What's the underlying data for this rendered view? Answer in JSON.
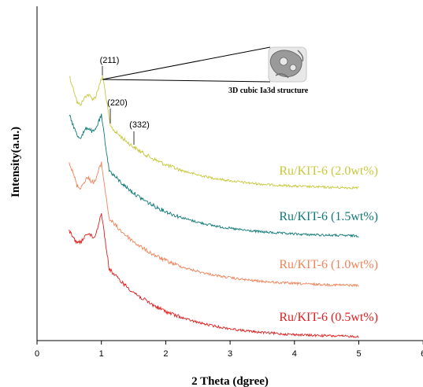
{
  "chart_data": {
    "type": "line",
    "title": "",
    "xlabel": "2 Theta (dgree)",
    "ylabel": "Intensity(a.u.)",
    "xlim": [
      0,
      6
    ],
    "x_ticks": [
      "0",
      "1",
      "2",
      "3",
      "4",
      "5",
      "6"
    ],
    "grid": false,
    "legend": "labels next to curves (right)",
    "series": [
      {
        "name": "Ru/KIT-6 (2.0wt%)",
        "color": "#c8c83c",
        "peak_x": 1.02,
        "x_start": 0.5,
        "x_end": 5.0
      },
      {
        "name": "Ru/KIT-6 (1.5wt%)",
        "color": "#0f7a78",
        "peak_x": 1.0,
        "x_start": 0.5,
        "x_end": 5.0
      },
      {
        "name": "Ru/KIT-6 (1.0wt%)",
        "color": "#f0845a",
        "peak_x": 1.0,
        "x_start": 0.5,
        "x_end": 5.0
      },
      {
        "name": "Ru/KIT-6 (0.5wt%)",
        "color": "#e01e1e",
        "peak_x": 1.0,
        "x_start": 0.5,
        "x_end": 5.0
      }
    ],
    "annotations": [
      {
        "text": "(211)",
        "x": 1.02
      },
      {
        "text": "(220)",
        "x": 1.15
      },
      {
        "text": "(332)",
        "x": 1.5
      }
    ],
    "inset": {
      "label": "3D cubic Ia3d structure",
      "icon": "gyroid-structure-icon"
    }
  }
}
